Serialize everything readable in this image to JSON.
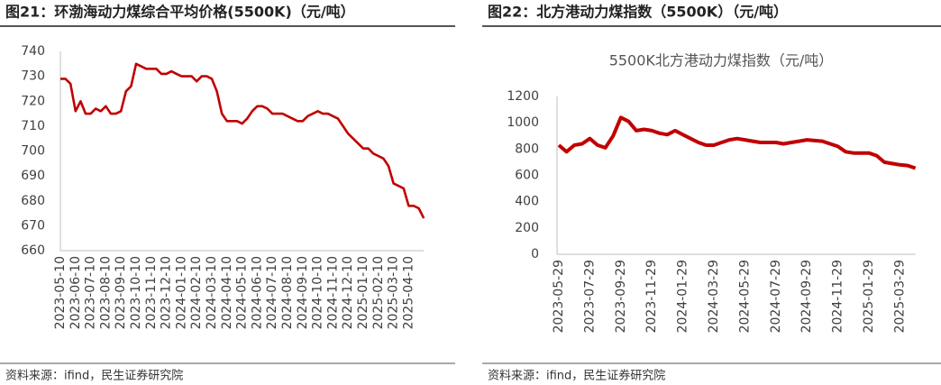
{
  "chart_data": [
    {
      "type": "line",
      "caption": "图21：环渤海动力煤综合平均价格(5500K)（元/吨）",
      "source": "资料来源：ifind，民生证券研究院",
      "color": "#c00000",
      "categories": [
        "2023-05-10",
        null,
        null,
        "2023-06-10",
        null,
        null,
        "2023-07-10",
        null,
        null,
        "2023-08-10",
        null,
        null,
        "2023-09-10",
        null,
        null,
        "2023-10-10",
        null,
        null,
        "2023-11-10",
        null,
        null,
        "2023-12-10",
        null,
        null,
        "2024-01-10",
        null,
        null,
        "2024-02-10",
        null,
        null,
        "2024-03-10",
        null,
        null,
        "2024-04-10",
        null,
        null,
        "2024-05-10",
        null,
        null,
        "2024-06-10",
        null,
        null,
        "2024-07-10",
        null,
        null,
        "2024-08-10",
        null,
        null,
        "2024-09-10",
        null,
        null,
        "2024-10-10",
        null,
        null,
        "2024-11-10",
        null,
        null,
        "2024-12-10",
        null,
        null,
        "2025-01-10",
        null,
        null,
        "2025-02-10",
        null,
        null,
        "2025-03-10",
        null,
        null,
        "2025-04-10",
        null,
        null,
        null
      ],
      "values": [
        729,
        729,
        727,
        716,
        720,
        715,
        715,
        717,
        716,
        718,
        715,
        715,
        716,
        724,
        726,
        735,
        734,
        733,
        733,
        733,
        731,
        731,
        732,
        731,
        730,
        730,
        730,
        728,
        730,
        730,
        729,
        724,
        715,
        712,
        712,
        712,
        711,
        713,
        716,
        718,
        718,
        717,
        715,
        715,
        715,
        714,
        713,
        712,
        712,
        714,
        715,
        716,
        715,
        715,
        714,
        713,
        710,
        707,
        705,
        703,
        701,
        701,
        699,
        698,
        697,
        694,
        687,
        686,
        685,
        678,
        678,
        677,
        673
      ],
      "ylim": [
        660,
        740
      ],
      "yticks": [
        660,
        670,
        680,
        690,
        700,
        710,
        720,
        730,
        740
      ]
    },
    {
      "type": "line",
      "caption": "图22：北方港动力煤指数（5500K）（元/吨）",
      "title": "5500K北方港动力煤指数（元/吨）",
      "source": "资料来源：ifind，民生证券研究院",
      "color": "#c00000",
      "categories": [
        "2023-05-29",
        null,
        null,
        null,
        "2023-07-29",
        null,
        null,
        null,
        "2023-09-29",
        null,
        null,
        null,
        "2023-11-29",
        null,
        null,
        null,
        "2024-01-29",
        null,
        null,
        null,
        "2024-03-29",
        null,
        null,
        null,
        "2024-05-29",
        null,
        null,
        null,
        "2024-07-29",
        null,
        null,
        null,
        "2024-09-29",
        null,
        null,
        null,
        "2024-11-29",
        null,
        null,
        null,
        "2025-01-29",
        null,
        null,
        null,
        "2025-03-29",
        null,
        null
      ],
      "values": [
        830,
        780,
        830,
        840,
        880,
        830,
        810,
        900,
        1040,
        1010,
        940,
        950,
        940,
        920,
        910,
        940,
        910,
        880,
        850,
        830,
        830,
        850,
        870,
        880,
        870,
        860,
        850,
        850,
        850,
        840,
        850,
        860,
        870,
        865,
        860,
        840,
        820,
        780,
        770,
        770,
        770,
        750,
        700,
        690,
        680,
        675,
        655
      ],
      "ylim": [
        0,
        1200
      ],
      "yticks": [
        0,
        200,
        400,
        600,
        800,
        1000,
        1200
      ]
    }
  ]
}
